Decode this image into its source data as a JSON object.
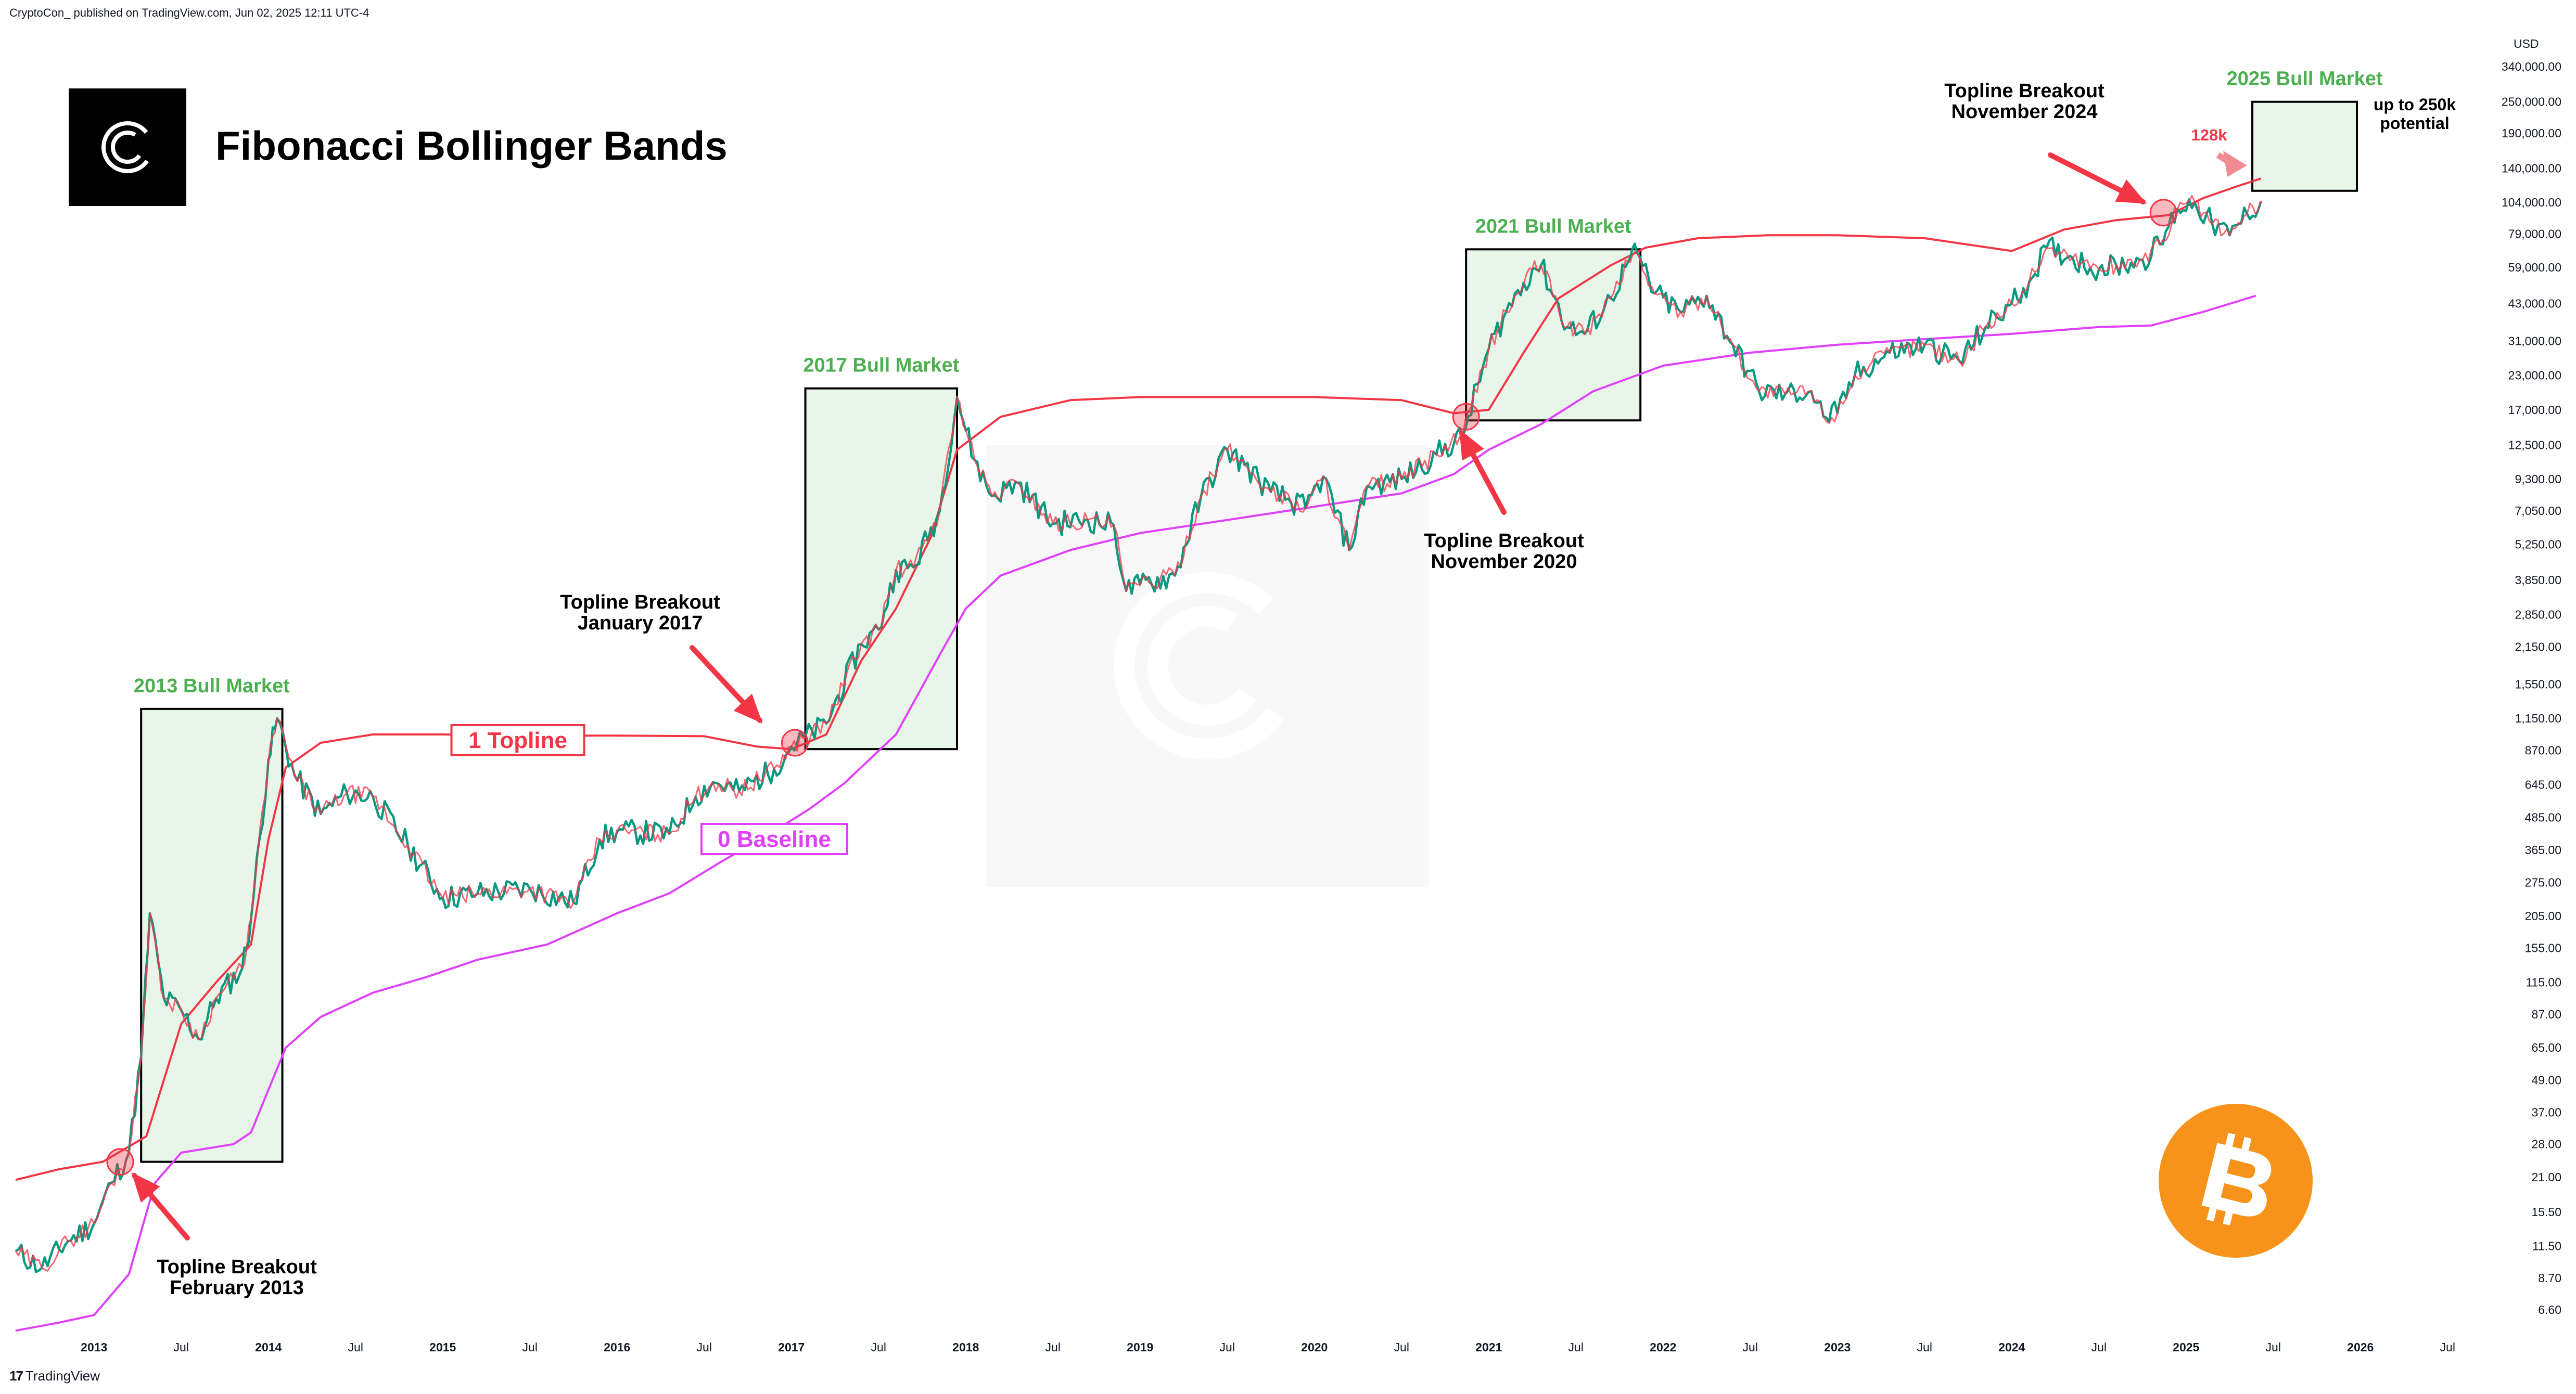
{
  "header": {
    "publisher": "CryptoCon_ published on TradingView.com, Jun 02, 2025 12:11 UTC-4"
  },
  "title": "Fibonacci Bollinger Bands",
  "footer": {
    "brand": "TradingView"
  },
  "colors": {
    "topline": "#f23645",
    "baseline": "#e040fb",
    "green": "#4caf50",
    "up": "#089981",
    "down": "#f23645",
    "box_fill": "#e8f5e9",
    "btc": "#f7931a"
  },
  "chart_data": {
    "type": "line",
    "title": "Fibonacci Bollinger Bands",
    "y_scale": "log",
    "y_unit": "USD",
    "y_ticks": [
      6.6,
      8.7,
      11.5,
      15.5,
      21.0,
      28.0,
      37.0,
      49.0,
      65.0,
      87.0,
      115.0,
      155.0,
      205.0,
      275.0,
      365.0,
      485.0,
      645.0,
      870.0,
      1150.0,
      1550.0,
      2150.0,
      2850.0,
      3850.0,
      5250.0,
      7050.0,
      9300.0,
      12500.0,
      17000.0,
      23000.0,
      31000.0,
      43000.0,
      59000.0,
      79000.0,
      104000.0,
      140000.0,
      190000.0,
      250000.0,
      340000.0
    ],
    "y_tick_labels": [
      "6.60",
      "8.70",
      "11.50",
      "15.50",
      "21.00",
      "28.00",
      "37.00",
      "49.00",
      "65.00",
      "87.00",
      "115.00",
      "155.00",
      "205.00",
      "275.00",
      "365.00",
      "485.00",
      "645.00",
      "870.00",
      "1,150.00",
      "1,550.00",
      "2,150.00",
      "2,850.00",
      "3,850.00",
      "5,250.00",
      "7,050.00",
      "9,300.00",
      "12,500.00",
      "17,000.00",
      "23,000.00",
      "31,000.00",
      "43,000.00",
      "59,000.00",
      "79,000.00",
      "104,000.00",
      "140,000.00",
      "190,000.00",
      "250,000.00",
      "340,000.00"
    ],
    "x_ticks": [
      {
        "t": 2013.0,
        "label": "2013",
        "bold": true
      },
      {
        "t": 2013.5,
        "label": "Jul",
        "bold": false
      },
      {
        "t": 2014.0,
        "label": "2014",
        "bold": true
      },
      {
        "t": 2014.5,
        "label": "Jul",
        "bold": false
      },
      {
        "t": 2015.0,
        "label": "2015",
        "bold": true
      },
      {
        "t": 2015.5,
        "label": "Jul",
        "bold": false
      },
      {
        "t": 2016.0,
        "label": "2016",
        "bold": true
      },
      {
        "t": 2016.5,
        "label": "Jul",
        "bold": false
      },
      {
        "t": 2017.0,
        "label": "2017",
        "bold": true
      },
      {
        "t": 2017.5,
        "label": "Jul",
        "bold": false
      },
      {
        "t": 2018.0,
        "label": "2018",
        "bold": true
      },
      {
        "t": 2018.5,
        "label": "Jul",
        "bold": false
      },
      {
        "t": 2019.0,
        "label": "2019",
        "bold": true
      },
      {
        "t": 2019.5,
        "label": "Jul",
        "bold": false
      },
      {
        "t": 2020.0,
        "label": "2020",
        "bold": true
      },
      {
        "t": 2020.5,
        "label": "Jul",
        "bold": false
      },
      {
        "t": 2021.0,
        "label": "2021",
        "bold": true
      },
      {
        "t": 2021.5,
        "label": "Jul",
        "bold": false
      },
      {
        "t": 2022.0,
        "label": "2022",
        "bold": true
      },
      {
        "t": 2022.5,
        "label": "Jul",
        "bold": false
      },
      {
        "t": 2023.0,
        "label": "2023",
        "bold": true
      },
      {
        "t": 2023.5,
        "label": "Jul",
        "bold": false
      },
      {
        "t": 2024.0,
        "label": "2024",
        "bold": true
      },
      {
        "t": 2024.5,
        "label": "Jul",
        "bold": false
      },
      {
        "t": 2025.0,
        "label": "2025",
        "bold": true
      },
      {
        "t": 2025.5,
        "label": "Jul",
        "bold": false
      },
      {
        "t": 2026.0,
        "label": "2026",
        "bold": true
      },
      {
        "t": 2026.5,
        "label": "Jul",
        "bold": false
      }
    ],
    "series": [
      {
        "name": "1 Topline",
        "color": "#f23645",
        "points": [
          [
            2012.55,
            20.5
          ],
          [
            2012.8,
            22.5
          ],
          [
            2013.05,
            24
          ],
          [
            2013.3,
            30
          ],
          [
            2013.5,
            80
          ],
          [
            2013.7,
            115
          ],
          [
            2013.9,
            160
          ],
          [
            2014.0,
            400
          ],
          [
            2014.1,
            750
          ],
          [
            2014.3,
            930
          ],
          [
            2014.6,
            1000
          ],
          [
            2015.0,
            1000
          ],
          [
            2015.5,
            990
          ],
          [
            2016.0,
            990
          ],
          [
            2016.5,
            985
          ],
          [
            2016.8,
            900
          ],
          [
            2017.0,
            880
          ],
          [
            2017.2,
            1000
          ],
          [
            2017.4,
            1900
          ],
          [
            2017.6,
            3000
          ],
          [
            2017.8,
            5600
          ],
          [
            2017.95,
            12000
          ],
          [
            2018.2,
            16000
          ],
          [
            2018.6,
            18500
          ],
          [
            2019.0,
            19000
          ],
          [
            2019.5,
            19000
          ],
          [
            2020.0,
            19000
          ],
          [
            2020.5,
            18500
          ],
          [
            2020.8,
            16500
          ],
          [
            2021.0,
            17000
          ],
          [
            2021.2,
            28000
          ],
          [
            2021.4,
            45000
          ],
          [
            2021.7,
            60000
          ],
          [
            2021.9,
            70000
          ],
          [
            2022.2,
            76000
          ],
          [
            2022.6,
            78000
          ],
          [
            2023.0,
            78000
          ],
          [
            2023.5,
            76000
          ],
          [
            2024.0,
            68000
          ],
          [
            2024.3,
            82000
          ],
          [
            2024.6,
            89000
          ],
          [
            2024.9,
            93000
          ],
          [
            2025.1,
            108000
          ],
          [
            2025.3,
            120000
          ],
          [
            2025.43,
            128000
          ]
        ]
      },
      {
        "name": "0 Baseline",
        "color": "#e040fb",
        "points": [
          [
            2012.55,
            5.5
          ],
          [
            2012.8,
            5.9
          ],
          [
            2013.0,
            6.3
          ],
          [
            2013.2,
            9
          ],
          [
            2013.35,
            20
          ],
          [
            2013.5,
            26
          ],
          [
            2013.8,
            28
          ],
          [
            2013.9,
            31
          ],
          [
            2014.0,
            45
          ],
          [
            2014.1,
            65
          ],
          [
            2014.3,
            85
          ],
          [
            2014.6,
            105
          ],
          [
            2014.9,
            120
          ],
          [
            2015.2,
            140
          ],
          [
            2015.6,
            160
          ],
          [
            2016.0,
            210
          ],
          [
            2016.3,
            250
          ],
          [
            2016.6,
            330
          ],
          [
            2016.9,
            430
          ],
          [
            2017.1,
            520
          ],
          [
            2017.3,
            650
          ],
          [
            2017.6,
            1000
          ],
          [
            2017.85,
            2000
          ],
          [
            2018.0,
            3000
          ],
          [
            2018.2,
            4000
          ],
          [
            2018.6,
            5000
          ],
          [
            2019.0,
            5800
          ],
          [
            2019.5,
            6500
          ],
          [
            2020.0,
            7300
          ],
          [
            2020.5,
            8200
          ],
          [
            2020.8,
            9700
          ],
          [
            2021.0,
            12000
          ],
          [
            2021.3,
            15000
          ],
          [
            2021.6,
            20000
          ],
          [
            2022.0,
            25000
          ],
          [
            2022.5,
            28000
          ],
          [
            2023.0,
            30000
          ],
          [
            2023.5,
            31500
          ],
          [
            2024.0,
            33000
          ],
          [
            2024.5,
            35000
          ],
          [
            2024.8,
            35500
          ],
          [
            2025.1,
            40000
          ],
          [
            2025.4,
            46000
          ]
        ]
      },
      {
        "name": "BTC",
        "color": "#089981",
        "points": [
          [
            2012.55,
            11
          ],
          [
            2012.7,
            9.5
          ],
          [
            2012.85,
            12
          ],
          [
            2013.0,
            14
          ],
          [
            2013.1,
            20
          ],
          [
            2013.2,
            26
          ],
          [
            2013.27,
            60
          ],
          [
            2013.32,
            210
          ],
          [
            2013.4,
            100
          ],
          [
            2013.5,
            90
          ],
          [
            2013.6,
            70
          ],
          [
            2013.7,
            100
          ],
          [
            2013.85,
            130
          ],
          [
            2013.9,
            200
          ],
          [
            2014.0,
            800
          ],
          [
            2014.05,
            1150
          ],
          [
            2014.15,
            700
          ],
          [
            2014.3,
            500
          ],
          [
            2014.45,
            600
          ],
          [
            2014.6,
            580
          ],
          [
            2014.8,
            380
          ],
          [
            2015.0,
            240
          ],
          [
            2015.2,
            250
          ],
          [
            2015.5,
            260
          ],
          [
            2015.75,
            230
          ],
          [
            2015.9,
            400
          ],
          [
            2016.0,
            430
          ],
          [
            2016.3,
            420
          ],
          [
            2016.45,
            580
          ],
          [
            2016.55,
            660
          ],
          [
            2016.7,
            610
          ],
          [
            2016.9,
            740
          ],
          [
            2017.0,
            900
          ],
          [
            2017.2,
            1100
          ],
          [
            2017.4,
            2200
          ],
          [
            2017.5,
            2500
          ],
          [
            2017.6,
            4200
          ],
          [
            2017.7,
            4300
          ],
          [
            2017.85,
            7000
          ],
          [
            2017.95,
            19000
          ],
          [
            2018.05,
            11000
          ],
          [
            2018.15,
            8000
          ],
          [
            2018.3,
            9000
          ],
          [
            2018.5,
            6300
          ],
          [
            2018.7,
            6500
          ],
          [
            2018.85,
            6200
          ],
          [
            2018.92,
            3500
          ],
          [
            2019.0,
            3700
          ],
          [
            2019.2,
            4000
          ],
          [
            2019.35,
            8000
          ],
          [
            2019.5,
            12000
          ],
          [
            2019.6,
            10500
          ],
          [
            2019.75,
            8300
          ],
          [
            2019.95,
            7200
          ],
          [
            2020.05,
            9500
          ],
          [
            2020.2,
            5000
          ],
          [
            2020.3,
            8700
          ],
          [
            2020.5,
            9300
          ],
          [
            2020.7,
            11500
          ],
          [
            2020.85,
            13500
          ],
          [
            2021.0,
            29000
          ],
          [
            2021.1,
            40000
          ],
          [
            2021.25,
            58000
          ],
          [
            2021.3,
            60000
          ],
          [
            2021.45,
            35000
          ],
          [
            2021.55,
            33000
          ],
          [
            2021.7,
            45000
          ],
          [
            2021.8,
            62000
          ],
          [
            2021.85,
            67000
          ],
          [
            2021.95,
            47000
          ],
          [
            2022.1,
            40000
          ],
          [
            2022.25,
            46000
          ],
          [
            2022.4,
            30000
          ],
          [
            2022.55,
            20000
          ],
          [
            2022.7,
            19500
          ],
          [
            2022.85,
            20000
          ],
          [
            2022.92,
            16000
          ],
          [
            2023.0,
            16500
          ],
          [
            2023.1,
            23000
          ],
          [
            2023.3,
            28000
          ],
          [
            2023.5,
            30000
          ],
          [
            2023.7,
            26000
          ],
          [
            2023.85,
            35000
          ],
          [
            2024.0,
            43000
          ],
          [
            2024.1,
            52000
          ],
          [
            2024.2,
            70000
          ],
          [
            2024.35,
            64000
          ],
          [
            2024.5,
            58000
          ],
          [
            2024.6,
            60000
          ],
          [
            2024.75,
            63000
          ],
          [
            2024.85,
            72000
          ],
          [
            2024.95,
            98000
          ],
          [
            2025.05,
            104000
          ],
          [
            2025.15,
            86000
          ],
          [
            2025.25,
            78000
          ],
          [
            2025.35,
            94000
          ],
          [
            2025.43,
            105000
          ]
        ]
      }
    ],
    "annotations": {
      "bull_markets": [
        {
          "label": "2013 Bull Market",
          "t0": 2013.27,
          "t1": 2014.08,
          "low": 24,
          "high": 1250
        },
        {
          "label": "2017 Bull Market",
          "t0": 2017.08,
          "t1": 2017.95,
          "low": 880,
          "high": 20500
        },
        {
          "label": "2021 Bull Market",
          "t0": 2020.87,
          "t1": 2021.87,
          "low": 15500,
          "high": 69000
        },
        {
          "label": "2025 Bull Market",
          "t0": 2025.38,
          "t1": 2025.98,
          "low": 115000,
          "high": 250000
        }
      ],
      "breakouts": [
        {
          "label_lines": [
            "Topline Breakout",
            "February 2013"
          ],
          "t": 2013.15,
          "v": 24
        },
        {
          "label_lines": [
            "Topline Breakout",
            "January 2017"
          ],
          "t": 2017.02,
          "v": 930
        },
        {
          "label_lines": [
            "Topline Breakout",
            "November 2020"
          ],
          "t": 2020.87,
          "v": 16000
        },
        {
          "label_lines": [
            "Topline Breakout",
            "November 2024"
          ],
          "t": 2024.87,
          "v": 95000
        }
      ],
      "topline_label": "1 Topline",
      "baseline_label": "0 Baseline",
      "target_label": "128k",
      "potential_lines": [
        "up to 250k",
        "potential"
      ]
    }
  }
}
